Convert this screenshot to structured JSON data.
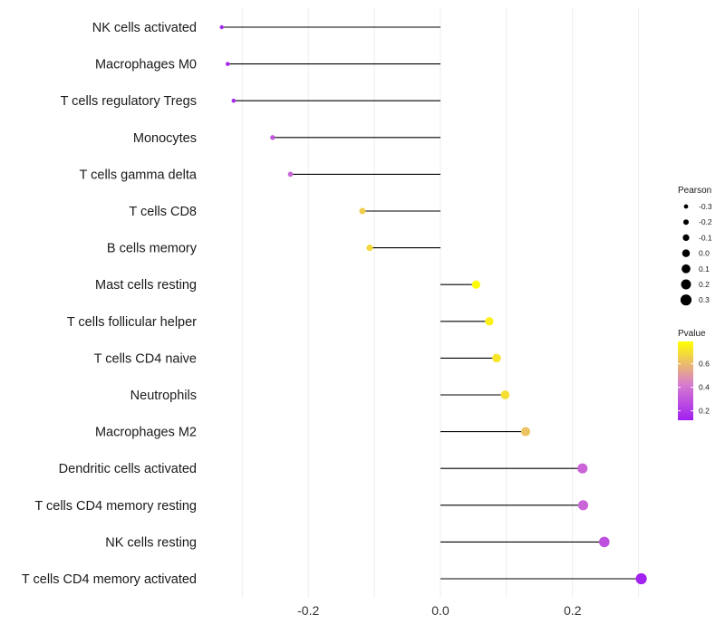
{
  "chart_data": {
    "type": "lollipop",
    "title": "",
    "xlabel": "",
    "ylabel": "",
    "xlim": [
      -0.33,
      0.3
    ],
    "xticks": [
      -0.2,
      0.0,
      0.2
    ],
    "xtick_labels": [
      "-0.2",
      "0.0",
      "0.2"
    ],
    "grid": "vertical",
    "categories": [
      "NK cells activated",
      "Macrophages M0",
      "T cells regulatory  Tregs",
      "Monocytes",
      "T cells gamma delta",
      "T cells CD8",
      "B cells memory",
      "Mast cells resting",
      "T cells follicular helper",
      "T cells CD4 naive",
      "Neutrophils",
      "Macrophages M2",
      "Dendritic cells activated",
      "T cells CD4 memory resting",
      "NK cells resting",
      "T cells CD4 memory activated"
    ],
    "values": [
      -0.331,
      -0.322,
      -0.313,
      -0.254,
      -0.227,
      -0.118,
      -0.107,
      0.054,
      0.074,
      0.085,
      0.098,
      0.129,
      0.215,
      0.216,
      0.248,
      0.304
    ],
    "pvalues": [
      0.15,
      0.15,
      0.17,
      0.3,
      0.35,
      0.65,
      0.68,
      0.78,
      0.75,
      0.72,
      0.7,
      0.62,
      0.35,
      0.35,
      0.28,
      0.13
    ],
    "legend": {
      "size_title": "Pearson",
      "size_values": [
        -0.3,
        -0.2,
        -0.1,
        0.0,
        0.1,
        0.2,
        0.3
      ],
      "size_labels": [
        "-0.3",
        "-0.2",
        "-0.1",
        "0.0",
        "0.1",
        "0.2",
        "0.3"
      ],
      "color_title": "Pvalue",
      "color_range": [
        0.12,
        0.79
      ],
      "color_ticks": [
        0.2,
        0.4,
        0.6
      ],
      "color_tick_labels": [
        "0.2",
        "0.4",
        "0.6"
      ],
      "placement": "right"
    },
    "colors": {
      "low": "#a020f0",
      "mid": "#d77bd0",
      "high": "#ffff00",
      "line": "#000000",
      "grid": "#ebebeb"
    }
  }
}
